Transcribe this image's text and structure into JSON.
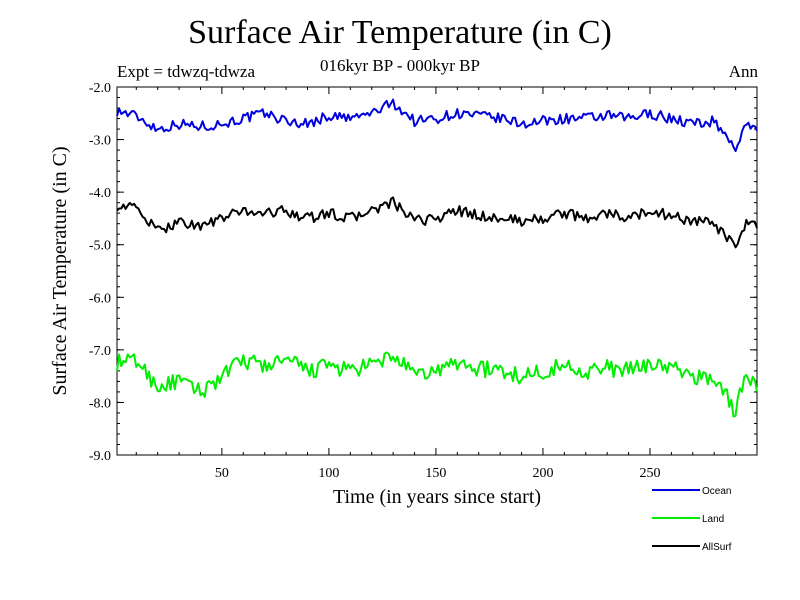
{
  "header": {
    "title": "Surface Air Temperature (in C)",
    "subtitle": "016kyr BP - 000kyr BP",
    "experiment": "Expt = tdwzq-tdwza",
    "season": "Ann"
  },
  "colors": {
    "ocean": "#0000dd",
    "land": "#00ee00",
    "allsurf": "#000000"
  },
  "chart_data": {
    "type": "line",
    "title": "Surface Air Temperature (in C)",
    "xlabel": "Time (in years since start)",
    "ylabel": "Surface Air Temperature (in C)",
    "xlim": [
      1,
      300
    ],
    "ylim": [
      -9.0,
      -2.0
    ],
    "xticks": [
      50,
      100,
      150,
      200,
      250
    ],
    "xtick_labels": [
      "50",
      "100",
      "150",
      "200",
      "250"
    ],
    "yticks": [
      -2.0,
      -3.0,
      -4.0,
      -5.0,
      -6.0,
      -7.0,
      -8.0,
      -9.0
    ],
    "ytick_labels": [
      "-2.0",
      "-3.0",
      "-4.0",
      "-5.0",
      "-6.0",
      "-7.0",
      "-8.0",
      "-9.0"
    ],
    "legend_position": "bottom-right, below plot",
    "series": [
      {
        "name": "Ocean",
        "color": "#0000dd",
        "x": [
          1,
          10,
          20,
          30,
          40,
          50,
          60,
          70,
          80,
          90,
          100,
          110,
          120,
          130,
          140,
          150,
          160,
          170,
          180,
          190,
          200,
          210,
          220,
          230,
          240,
          250,
          260,
          270,
          280,
          285,
          290,
          295,
          300
        ],
        "y": [
          -2.45,
          -2.55,
          -2.8,
          -2.7,
          -2.75,
          -2.7,
          -2.6,
          -2.5,
          -2.65,
          -2.7,
          -2.55,
          -2.6,
          -2.5,
          -2.3,
          -2.65,
          -2.6,
          -2.5,
          -2.55,
          -2.6,
          -2.7,
          -2.65,
          -2.6,
          -2.6,
          -2.55,
          -2.6,
          -2.5,
          -2.6,
          -2.7,
          -2.65,
          -2.9,
          -3.15,
          -2.75,
          -2.75
        ]
      },
      {
        "name": "Land",
        "color": "#00ee00",
        "x": [
          1,
          10,
          20,
          30,
          40,
          50,
          60,
          70,
          80,
          90,
          100,
          110,
          120,
          130,
          140,
          150,
          160,
          170,
          180,
          190,
          200,
          210,
          220,
          230,
          240,
          250,
          260,
          270,
          280,
          285,
          290,
          295,
          300
        ],
        "y": [
          -7.25,
          -7.2,
          -7.7,
          -7.6,
          -7.8,
          -7.5,
          -7.2,
          -7.3,
          -7.2,
          -7.4,
          -7.3,
          -7.4,
          -7.3,
          -7.1,
          -7.5,
          -7.4,
          -7.25,
          -7.35,
          -7.4,
          -7.5,
          -7.4,
          -7.3,
          -7.4,
          -7.35,
          -7.4,
          -7.25,
          -7.35,
          -7.5,
          -7.55,
          -7.8,
          -8.2,
          -7.4,
          -7.7
        ]
      },
      {
        "name": "AllSurf",
        "color": "#000000",
        "x": [
          1,
          10,
          20,
          30,
          40,
          50,
          60,
          70,
          80,
          90,
          100,
          110,
          120,
          130,
          140,
          150,
          160,
          170,
          180,
          190,
          200,
          210,
          220,
          230,
          240,
          250,
          260,
          270,
          280,
          285,
          290,
          295,
          300
        ],
        "y": [
          -4.25,
          -4.3,
          -4.75,
          -4.55,
          -4.65,
          -4.5,
          -4.35,
          -4.4,
          -4.35,
          -4.5,
          -4.4,
          -4.5,
          -4.35,
          -4.2,
          -4.55,
          -4.5,
          -4.35,
          -4.45,
          -4.5,
          -4.55,
          -4.5,
          -4.4,
          -4.5,
          -4.4,
          -4.5,
          -4.35,
          -4.45,
          -4.55,
          -4.6,
          -4.85,
          -5.05,
          -4.6,
          -4.65
        ]
      }
    ]
  }
}
